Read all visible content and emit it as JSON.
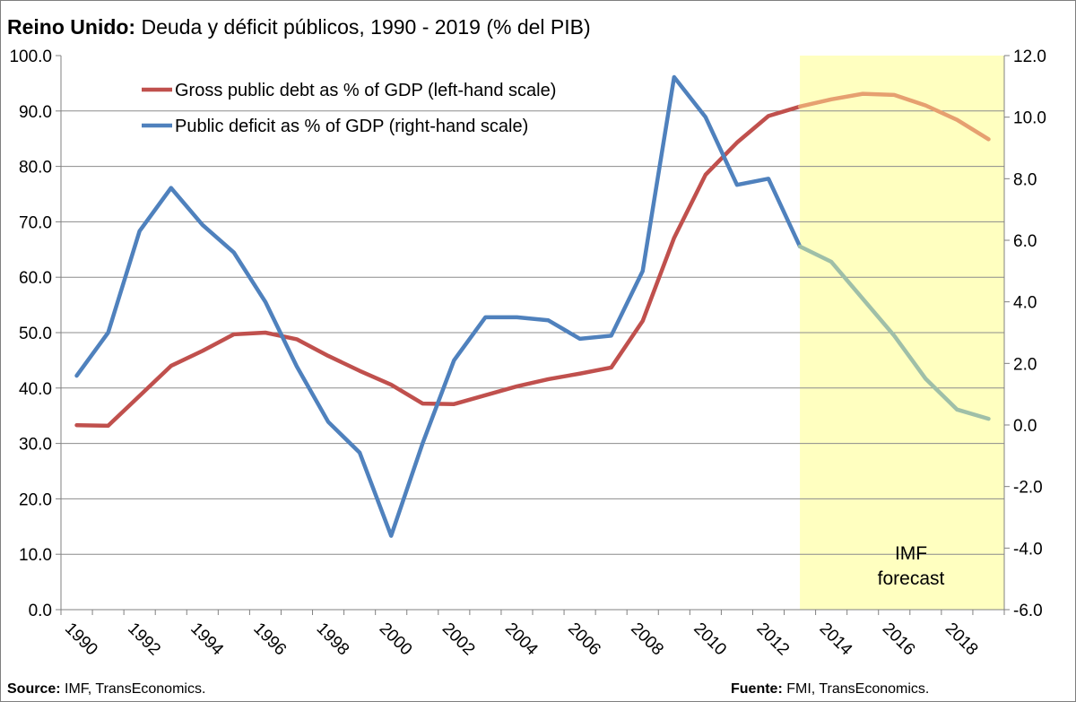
{
  "title": {
    "bold": "Reino Unido:",
    "rest": " Deuda y déficit públicos, 1990 - 2019 (% del PIB)"
  },
  "footer": {
    "source_label": "Source:",
    "source_text": " IMF, TransEconomics.",
    "fuente_label": "Fuente:",
    "fuente_text": " FMI, TransEconomics."
  },
  "chart_data": {
    "type": "line",
    "x": [
      1990,
      1991,
      1992,
      1993,
      1994,
      1995,
      1996,
      1997,
      1998,
      1999,
      2000,
      2001,
      2002,
      2003,
      2004,
      2005,
      2006,
      2007,
      2008,
      2009,
      2010,
      2011,
      2012,
      2013,
      2014,
      2015,
      2016,
      2017,
      2018,
      2019
    ],
    "x_tick_labels": [
      "1990",
      "1992",
      "1994",
      "1996",
      "1998",
      "2000",
      "2002",
      "2004",
      "2006",
      "2008",
      "2010",
      "2012",
      "2014",
      "2016",
      "2018"
    ],
    "forecast_start": 2013,
    "annotation": [
      "IMF",
      "forecast"
    ],
    "legend_position": "top-left",
    "y_left": {
      "range": [
        0,
        100
      ],
      "ticks": [
        "0.0",
        "10.0",
        "20.0",
        "30.0",
        "40.0",
        "50.0",
        "60.0",
        "70.0",
        "80.0",
        "90.0",
        "100.0"
      ]
    },
    "y_right": {
      "range": [
        -6,
        12
      ],
      "ticks": [
        "-6.0",
        "-4.0",
        "-2.0",
        "0.0",
        "2.0",
        "4.0",
        "6.0",
        "8.0",
        "10.0",
        "12.0"
      ]
    },
    "grid": true,
    "series": [
      {
        "name": "Gross public debt as % of GDP (left-hand scale)",
        "axis": "left",
        "color": "#c0504d",
        "forecast_color": "#e6a070",
        "values": [
          33.3,
          33.2,
          38.6,
          44.0,
          46.7,
          49.7,
          50.0,
          48.8,
          45.8,
          43.1,
          40.6,
          37.2,
          37.1,
          38.7,
          40.3,
          41.6,
          42.6,
          43.7,
          52.1,
          67.1,
          78.5,
          84.3,
          89.1,
          90.8,
          92.1,
          93.1,
          92.9,
          91.0,
          88.4,
          84.9
        ]
      },
      {
        "name": "Public deficit as % of GDP (right-hand scale)",
        "axis": "right",
        "color": "#4f81bd",
        "forecast_color": "#9fbfa8",
        "values": [
          1.6,
          3.0,
          6.3,
          7.7,
          6.5,
          5.6,
          4.0,
          1.9,
          0.1,
          -0.9,
          -3.6,
          -0.6,
          2.1,
          3.5,
          3.5,
          3.4,
          2.8,
          2.9,
          5.0,
          11.3,
          10.0,
          7.8,
          8.0,
          5.8,
          5.3,
          4.1,
          2.9,
          1.5,
          0.5,
          0.2
        ]
      }
    ]
  }
}
